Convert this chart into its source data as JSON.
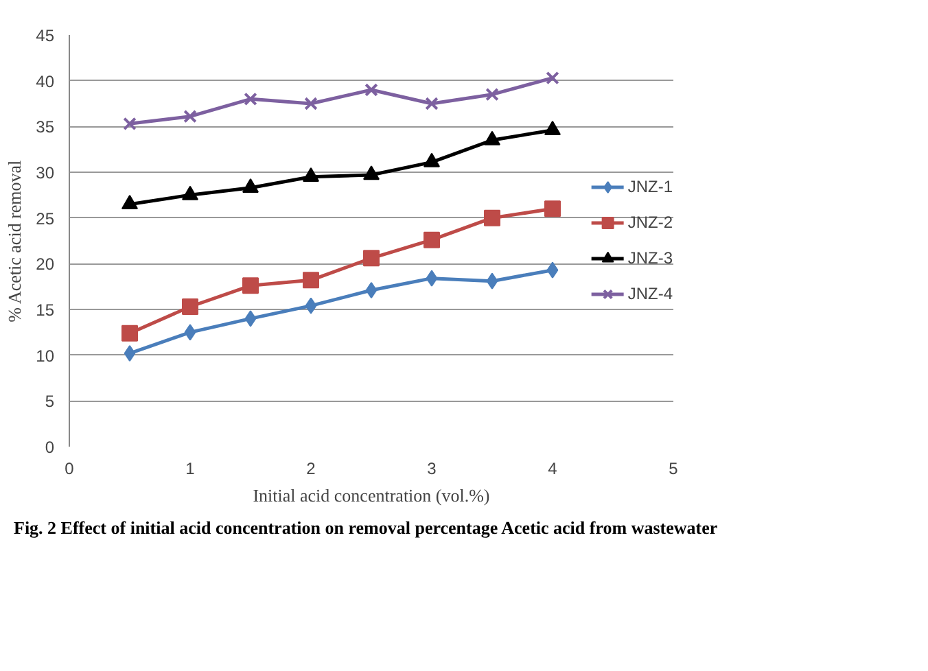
{
  "chart_data": {
    "type": "line",
    "xlabel": "Initial acid concentration (vol.%)",
    "ylabel": "% Acetic acid removal",
    "x": [
      0.5,
      1,
      1.5,
      2,
      2.5,
      3,
      3.5,
      4
    ],
    "series": [
      {
        "name": "JNZ-1",
        "color": "#4a7ebb",
        "marker": "diamond",
        "values": [
          10.2,
          12.5,
          14,
          15.4,
          17.1,
          18.4,
          18.1,
          19.3
        ]
      },
      {
        "name": "JNZ-2",
        "color": "#be4b48",
        "marker": "square",
        "values": [
          12.4,
          15.3,
          17.6,
          18.2,
          20.6,
          22.6,
          25,
          26
        ]
      },
      {
        "name": "JNZ-3",
        "color": "#000000",
        "marker": "triangle",
        "values": [
          26.5,
          27.5,
          28.3,
          29.5,
          29.7,
          31.1,
          33.5,
          34.6
        ]
      },
      {
        "name": "JNZ-4",
        "color": "#7d60a0",
        "marker": "cross",
        "values": [
          35.3,
          36.1,
          38,
          37.5,
          39,
          37.5,
          38.5,
          40.3
        ]
      }
    ],
    "xlim": [
      0,
      5
    ],
    "xticks": [
      0,
      1,
      2,
      3,
      4,
      5
    ],
    "ylim": [
      0,
      45
    ],
    "yticks": [
      0,
      5,
      10,
      15,
      20,
      25,
      30,
      35,
      40,
      45
    ],
    "grid": "y",
    "legend": "right",
    "line_style": "solid",
    "annotations": [
      "Fig. 2 Effect of initial acid concentration on removal percentage Acetic acid  from wastewater"
    ]
  }
}
